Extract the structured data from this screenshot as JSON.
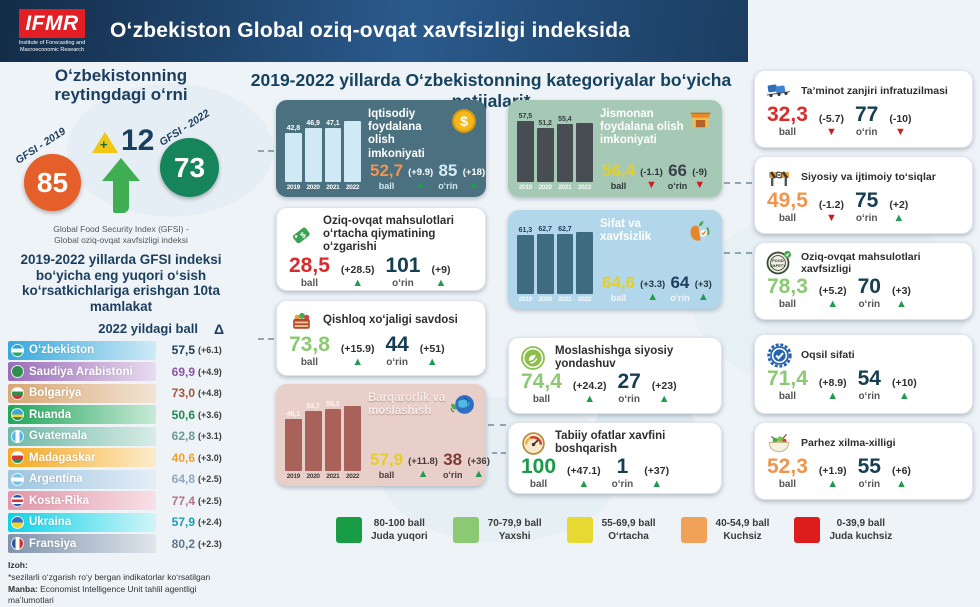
{
  "colors": {
    "trend_up": "#1f9d4d",
    "trend_down": "#c81e1e",
    "accent_navy": "#16425f"
  },
  "labels": {
    "ball": "ball",
    "rank": "oʻrin"
  },
  "header": {
    "logo": "IFMR",
    "logo_sub": "Institute of Forecasting and Macroeconomic Research",
    "title": "Oʻzbekiston Global oziq-ovqat xavfsizligi indeksida"
  },
  "left": {
    "rating_title_1": "Oʻzbekistonning",
    "rating_title_2": "reytingdagi oʻrni",
    "gfsi_2019_label": "GFSI - 2019",
    "gfsi_2019_value": "85",
    "gfsi_2022_label": "GFSI - 2022",
    "gfsi_2022_value": "73",
    "change_plus": "+",
    "change_value": "12",
    "caption_1": "Global Food Security Index (GFSI) -",
    "caption_2": "Global oziq-ovqat xavfsizligi indeksi",
    "top10_title": "2019-2022 yillarda GFSI indeksi boʻyicha eng yuqori oʻsish koʻrsatkichlariga erishgan 10ta mamlakat",
    "col_header": "2022 yildagi ball",
    "delta_symbol": "Δ",
    "countries": [
      {
        "name": "Oʻzbekiston",
        "score": "57,5",
        "delta": "(+6.1)",
        "score_color": "#1c3e5e"
      },
      {
        "name": "Saudiya Arabistoni",
        "score": "69,9",
        "delta": "(+4.9)",
        "score_color": "#8a55a8"
      },
      {
        "name": "Bolgariya",
        "score": "73,0",
        "delta": "(+4.8)",
        "score_color": "#a85438"
      },
      {
        "name": "Ruanda",
        "score": "50,6",
        "delta": "(+3.6)",
        "score_color": "#1f8a4d"
      },
      {
        "name": "Gvatemala",
        "score": "62,8",
        "delta": "(+3.1)",
        "score_color": "#6d9a90"
      },
      {
        "name": "Madagaskar",
        "score": "40,6",
        "delta": "(+3.0)",
        "score_color": "#f0a028"
      },
      {
        "name": "Argentina",
        "score": "64,8",
        "delta": "(+2.5)",
        "score_color": "#8fa8bf"
      },
      {
        "name": "Kosta-Rika",
        "score": "77,4",
        "delta": "(+2.5)",
        "score_color": "#b77286"
      },
      {
        "name": "Ukraina",
        "score": "57,9",
        "delta": "(+2.4)",
        "score_color": "#16a0b4"
      },
      {
        "name": "Fransiya",
        "score": "80,2",
        "delta": "(+2.3)",
        "score_color": "#64748c"
      }
    ],
    "note_label": "Izoh:",
    "note": "*sezilarli oʻzgarish roʻy bergan indikatorlar koʻrsatilgan",
    "source_label": "Manba:",
    "source": "Economist Intelligence Unit tahlil agentligi maʼlumotlari"
  },
  "main": {
    "title": "2019-2022 yillarda Oʻzbekistonning kategoriyalar boʻyicha natijalari*",
    "cards": [
      {
        "title": "Iqtisodiy foydalana olish imkoniyati",
        "icon": "dollar-coin-icon",
        "ball": "52,7",
        "ball_color": "#f0954e",
        "ball_delta": "(+9.9)",
        "ball_trend": "up",
        "rank": "85",
        "rank_delta": "(+18)",
        "rank_trend": "up",
        "bar_labels": [
          "42,8",
          "46,9",
          "47,1",
          ""
        ]
      },
      {
        "title": "Oziq-ovqat mahsulotlari oʻrtacha qiymatining oʻzgarishi",
        "icon": "price-tag-icon",
        "ball": "28,5",
        "ball_color": "#d92b2b",
        "ball_delta": "(+28.5)",
        "ball_trend": "up",
        "rank": "101",
        "rank_delta": "(+9)",
        "rank_trend": "up"
      },
      {
        "title": "Qishloq xoʻjaligi savdosi",
        "icon": "basket-icon",
        "ball": "73,8",
        "ball_color": "#8cc973",
        "ball_delta": "(+15.9)",
        "ball_trend": "up",
        "rank": "44",
        "rank_delta": "(+51)",
        "rank_trend": "up"
      },
      {
        "title": "Barqarorlik va moslashish",
        "icon": "globe-leaf-icon",
        "ball": "57,9",
        "ball_color": "#e3cf2b",
        "ball_delta": "(+11.8)",
        "ball_trend": "up",
        "rank": "38",
        "rank_delta": "(+36)",
        "rank_trend": "up",
        "bar_labels": [
          "46,1",
          "53,7",
          "55,1",
          ""
        ]
      },
      {
        "title": "Jismonan foydalana olish imkoniyati",
        "icon": "market-stall-icon",
        "ball": "56,4",
        "ball_color": "#e3cf2b",
        "ball_delta": "(-1.1)",
        "ball_trend": "down",
        "rank": "66",
        "rank_delta": "(-9)",
        "rank_trend": "down",
        "bar_labels": [
          "57,5",
          "51,2",
          "55,4",
          ""
        ]
      },
      {
        "title": "Sifat va xavfsizlik",
        "icon": "apple-icon",
        "ball": "64,6",
        "ball_color": "#e3cf2b",
        "ball_delta": "(+3.3)",
        "ball_trend": "up",
        "rank": "64",
        "rank_delta": "(+3)",
        "rank_trend": "up",
        "bar_labels": [
          "61,3",
          "62,7",
          "62,7",
          ""
        ]
      },
      {
        "title": "Moslashishga siyosiy yondashuv",
        "icon": "adaptation-icon",
        "ball": "74,4",
        "ball_color": "#8cc973",
        "ball_delta": "(+24.2)",
        "ball_trend": "up",
        "rank": "27",
        "rank_delta": "(+23)",
        "rank_trend": "up"
      },
      {
        "title": "Tabiiy ofatlar xavfini boshqarish",
        "icon": "gauge-icon",
        "ball": "100",
        "ball_color": "#189c46",
        "ball_delta": "(+47.1)",
        "ball_trend": "up",
        "rank": "1",
        "rank_delta": "(+37)",
        "rank_trend": "up"
      },
      {
        "title": "Taʼminot zanjiri infratuzilmasi",
        "icon": "freight-train-icon",
        "ball": "32,3",
        "ball_color": "#d92b2b",
        "ball_delta": "(-5.7)",
        "ball_trend": "down",
        "rank": "77",
        "rank_delta": "(-10)",
        "rank_trend": "down"
      },
      {
        "title": "Siyosiy va ijtimoiy toʻsiqlar",
        "icon": "barrier-icon",
        "ball": "49,5",
        "ball_color": "#f0954e",
        "ball_delta": "(-1.2)",
        "ball_trend": "down",
        "rank": "75",
        "rank_delta": "(+2)",
        "rank_trend": "up"
      },
      {
        "title": "Oziq-ovqat mahsulotlari xavfsizligi",
        "icon": "food-safety-stamp-icon",
        "ball": "78,3",
        "ball_color": "#8cc973",
        "ball_delta": "(+5.2)",
        "ball_trend": "up",
        "rank": "70",
        "rank_delta": "(+3)",
        "rank_trend": "up"
      },
      {
        "title": "Oqsil sifati",
        "icon": "quality-badge-icon",
        "ball": "71,4",
        "ball_color": "#8cc973",
        "ball_delta": "(+8.9)",
        "ball_trend": "up",
        "rank": "54",
        "rank_delta": "(+10)",
        "rank_trend": "up"
      },
      {
        "title": "Parhez xilma-xilligi",
        "icon": "salad-icon",
        "ball": "52,3",
        "ball_color": "#f0954e",
        "ball_delta": "(+1.9)",
        "ball_trend": "up",
        "rank": "55",
        "rank_delta": "(+6)",
        "rank_trend": "up"
      }
    ]
  },
  "legend": [
    {
      "range": "80-100 ball",
      "label": "Juda yuqori",
      "color": "#189c46"
    },
    {
      "range": "70-79,9 ball",
      "label": "Yaxshi",
      "color": "#8cc973"
    },
    {
      "range": "55-69,9 ball",
      "label": "Oʻrtacha",
      "color": "#e8d832"
    },
    {
      "range": "40-54,9 ball",
      "label": "Kuchsiz",
      "color": "#f2a158"
    },
    {
      "range": "0-39,9 ball",
      "label": "Juda kuchsiz",
      "color": "#dd1c1c"
    }
  ],
  "chart_data": [
    {
      "type": "bar",
      "title": "Iqtisodiy foydalana olish imkoniyati (ball)",
      "categories": [
        "2019",
        "2020",
        "2021",
        "2022"
      ],
      "values": [
        42.8,
        46.9,
        47.1,
        52.7
      ]
    },
    {
      "type": "bar",
      "title": "Jismonan foydalana olish imkoniyati (ball)",
      "categories": [
        "2019",
        "2020",
        "2021",
        "2022"
      ],
      "values": [
        57.5,
        51.2,
        55.4,
        56.4
      ]
    },
    {
      "type": "bar",
      "title": "Sifat va xavfsizlik (ball)",
      "categories": [
        "2019",
        "2020",
        "2021",
        "2022"
      ],
      "values": [
        61.3,
        62.7,
        62.7,
        64.6
      ]
    },
    {
      "type": "bar",
      "title": "Barqarorlik va moslashish (ball)",
      "categories": [
        "2019",
        "2020",
        "2021",
        "2022"
      ],
      "values": [
        46.1,
        53.7,
        55.1,
        57.9
      ]
    },
    {
      "type": "table",
      "title": "2019-2022 yillarda GFSI indeksi boʻyicha eng yuqori oʻsish koʻrsatkichlariga erishgan 10ta mamlakat",
      "columns": [
        "Mamlakat",
        "2022 yildagi ball",
        "Δ"
      ],
      "rows": [
        [
          "Oʻzbekiston",
          "57,5",
          "+6.1"
        ],
        [
          "Saudiya Arabistoni",
          "69,9",
          "+4.9"
        ],
        [
          "Bolgariya",
          "73,0",
          "+4.8"
        ],
        [
          "Ruanda",
          "50,6",
          "+3.6"
        ],
        [
          "Gvatemala",
          "62,8",
          "+3.1"
        ],
        [
          "Madagaskar",
          "40,6",
          "+3.0"
        ],
        [
          "Argentina",
          "64,8",
          "+2.5"
        ],
        [
          "Kosta-Rika",
          "77,4",
          "+2.5"
        ],
        [
          "Ukraina",
          "57,9",
          "+2.4"
        ],
        [
          "Fransiya",
          "80,2",
          "+2.3"
        ]
      ]
    },
    {
      "type": "scatter",
      "title": "Oʻzbekistonning reytingdagi oʻrni",
      "categories": [
        "GFSI - 2019",
        "GFSI - 2022"
      ],
      "values": [
        85,
        73
      ],
      "annotation": "+12"
    }
  ]
}
